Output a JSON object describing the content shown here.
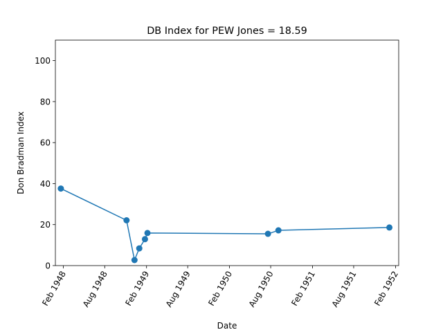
{
  "chart_data": {
    "type": "line",
    "title": "DB Index for PEW Jones = 18.59",
    "xlabel": "Date",
    "ylabel": "Don Bradman Index",
    "ylim": [
      0,
      110
    ],
    "xlim": [
      "1947-12-28",
      "1952-02-15"
    ],
    "yticks": [
      0,
      20,
      40,
      60,
      80,
      100
    ],
    "xticks": [
      {
        "date": "1948-02-01",
        "label": "Feb 1948"
      },
      {
        "date": "1948-08-01",
        "label": "Aug 1948"
      },
      {
        "date": "1949-02-01",
        "label": "Feb 1949"
      },
      {
        "date": "1949-08-01",
        "label": "Aug 1949"
      },
      {
        "date": "1950-02-01",
        "label": "Feb 1950"
      },
      {
        "date": "1950-08-01",
        "label": "Aug 1950"
      },
      {
        "date": "1951-02-01",
        "label": "Feb 1951"
      },
      {
        "date": "1951-08-01",
        "label": "Aug 1951"
      },
      {
        "date": "1952-02-01",
        "label": "Feb 1952"
      }
    ],
    "grid": false,
    "series": [
      {
        "color": "#1f77b4",
        "marker": "circle",
        "points": [
          {
            "x": "1948-01-21",
            "y": 37.6
          },
          {
            "x": "1948-11-05",
            "y": 22.1
          },
          {
            "x": "1948-12-10",
            "y": 2.7
          },
          {
            "x": "1948-12-31",
            "y": 8.4
          },
          {
            "x": "1949-01-25",
            "y": 12.9
          },
          {
            "x": "1949-02-05",
            "y": 15.9
          },
          {
            "x": "1950-07-20",
            "y": 15.5
          },
          {
            "x": "1950-09-04",
            "y": 17.2
          },
          {
            "x": "1952-01-05",
            "y": 18.59
          }
        ]
      }
    ]
  }
}
